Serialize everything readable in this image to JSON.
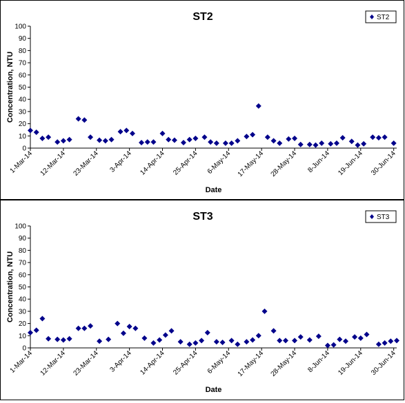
{
  "chart_data": [
    {
      "type": "scatter",
      "title": "ST2",
      "xlabel": "Date",
      "ylabel": "Concentration, NTU",
      "ylim": [
        0,
        100
      ],
      "y_ticks": [
        0,
        10,
        20,
        30,
        40,
        50,
        60,
        70,
        80,
        90,
        100
      ],
      "x_ticks": [
        "1-Mar-14",
        "12-Mar-14",
        "23-Mar-14",
        "3-Apr-14",
        "14-Apr-14",
        "25-Apr-14",
        "6-May-14",
        "17-May-14",
        "28-May-14",
        "8-Jun-14",
        "19-Jun-14",
        "30-Jun-14"
      ],
      "xlim": [
        "2014-03-01",
        "2014-07-01"
      ],
      "legend_position": "top-right",
      "color": "#00008B",
      "series": [
        {
          "name": "ST2",
          "x": [
            "2014-03-01",
            "2014-03-03",
            "2014-03-05",
            "2014-03-07",
            "2014-03-10",
            "2014-03-12",
            "2014-03-14",
            "2014-03-17",
            "2014-03-19",
            "2014-03-21",
            "2014-03-24",
            "2014-03-26",
            "2014-03-28",
            "2014-03-31",
            "2014-04-02",
            "2014-04-04",
            "2014-04-07",
            "2014-04-09",
            "2014-04-11",
            "2014-04-14",
            "2014-04-16",
            "2014-04-18",
            "2014-04-21",
            "2014-04-23",
            "2014-04-25",
            "2014-04-28",
            "2014-04-30",
            "2014-05-02",
            "2014-05-05",
            "2014-05-07",
            "2014-05-09",
            "2014-05-12",
            "2014-05-14",
            "2014-05-16",
            "2014-05-19",
            "2014-05-21",
            "2014-05-23",
            "2014-05-26",
            "2014-05-28",
            "2014-05-30",
            "2014-06-02",
            "2014-06-04",
            "2014-06-06",
            "2014-06-09",
            "2014-06-11",
            "2014-06-13",
            "2014-06-16",
            "2014-06-18",
            "2014-06-20",
            "2014-06-23",
            "2014-06-25",
            "2014-06-27",
            "2014-06-30"
          ],
          "y": [
            14.5,
            13,
            8,
            9,
            5,
            6,
            7,
            24,
            23,
            9,
            6.5,
            6,
            7,
            13.5,
            14.5,
            12,
            4.5,
            5,
            5,
            12,
            7,
            6.5,
            4.5,
            7,
            8,
            9,
            5,
            4,
            4,
            4,
            6,
            9.5,
            11,
            34.5,
            9,
            6,
            4,
            7.5,
            8,
            3,
            3,
            2.5,
            4,
            3.5,
            4,
            8.5,
            5.5,
            2.5,
            3.5,
            9,
            8.5,
            9,
            4
          ]
        }
      ]
    },
    {
      "type": "scatter",
      "title": "ST3",
      "xlabel": "Date",
      "ylabel": "Concentration, NTU",
      "ylim": [
        0,
        100
      ],
      "y_ticks": [
        0,
        10,
        20,
        30,
        40,
        50,
        60,
        70,
        80,
        90,
        100
      ],
      "x_ticks": [
        "1-Mar-14",
        "12-Mar-14",
        "23-Mar-14",
        "3-Apr-14",
        "14-Apr-14",
        "25-Apr-14",
        "6-May-14",
        "17-May-14",
        "28-May-14",
        "8-Jun-14",
        "19-Jun-14",
        "30-Jun-14"
      ],
      "xlim": [
        "2014-03-01",
        "2014-07-01"
      ],
      "legend_position": "top-right",
      "color": "#00008B",
      "series": [
        {
          "name": "ST3",
          "x": [
            "2014-03-01",
            "2014-03-03",
            "2014-03-05",
            "2014-03-07",
            "2014-03-10",
            "2014-03-12",
            "2014-03-14",
            "2014-03-17",
            "2014-03-19",
            "2014-03-21",
            "2014-03-24",
            "2014-03-27",
            "2014-03-30",
            "2014-04-01",
            "2014-04-03",
            "2014-04-05",
            "2014-04-08",
            "2014-04-11",
            "2014-04-13",
            "2014-04-15",
            "2014-04-17",
            "2014-04-20",
            "2014-04-23",
            "2014-04-25",
            "2014-04-27",
            "2014-04-29",
            "2014-05-02",
            "2014-05-04",
            "2014-05-07",
            "2014-05-09",
            "2014-05-12",
            "2014-05-14",
            "2014-05-16",
            "2014-05-18",
            "2014-05-21",
            "2014-05-23",
            "2014-05-25",
            "2014-05-28",
            "2014-05-30",
            "2014-06-02",
            "2014-06-05",
            "2014-06-08",
            "2014-06-10",
            "2014-06-12",
            "2014-06-14",
            "2014-06-17",
            "2014-06-19",
            "2014-06-21",
            "2014-06-25",
            "2014-06-27",
            "2014-06-29",
            "2014-07-01"
          ],
          "y": [
            12.5,
            14.5,
            24,
            7.5,
            7,
            6.5,
            7.5,
            16,
            16,
            18,
            5.5,
            7,
            20,
            12,
            17.5,
            16,
            8,
            4,
            6.5,
            10.5,
            14,
            5,
            3,
            4,
            6,
            12.5,
            5,
            4.5,
            6,
            3,
            5,
            6.5,
            10,
            30,
            14,
            6,
            6,
            6,
            9,
            6.5,
            9.5,
            2,
            2.5,
            7,
            5.5,
            9,
            8,
            11,
            3,
            4,
            5.5,
            6
          ]
        }
      ]
    }
  ]
}
